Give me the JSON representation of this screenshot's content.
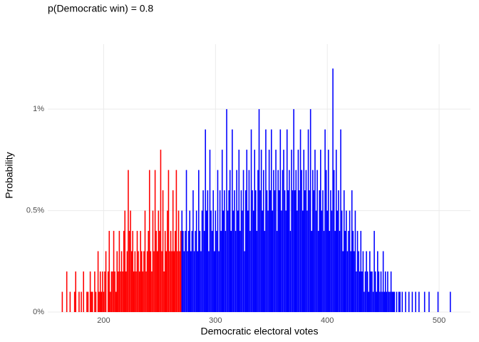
{
  "chart_data": {
    "type": "histogram",
    "title": "p(Democratic win) = 0.8",
    "x_label": "Democratic electoral votes",
    "y_label": "Probability",
    "xlim": [
      150,
      528
    ],
    "ylim": [
      0,
      1.32
    ],
    "xticks": [
      200,
      300,
      400,
      500
    ],
    "yticks": [
      {
        "value": 0,
        "label": "0%"
      },
      {
        "value": 0.5,
        "label": "0.5%"
      },
      {
        "value": 1,
        "label": "1%"
      }
    ],
    "grid": true,
    "series": [
      {
        "color": "#ff0000",
        "x": [
          163,
          164,
          165,
          166,
          167,
          168,
          169,
          170,
          171,
          172,
          173,
          174,
          175,
          176,
          177,
          178,
          179,
          180,
          181,
          182,
          183,
          184,
          185,
          186,
          187,
          188,
          189,
          190,
          191,
          192,
          193,
          194,
          195,
          196,
          197,
          198,
          199,
          200,
          201,
          202,
          203,
          204,
          205,
          206,
          207,
          208,
          209,
          210,
          211,
          212,
          213,
          214,
          215,
          216,
          217,
          218,
          219,
          220,
          221,
          222,
          223,
          224,
          225,
          226,
          227,
          228,
          229,
          230,
          231,
          232,
          233,
          234,
          235,
          236,
          237,
          238,
          239,
          240,
          241,
          242,
          243,
          244,
          245,
          246,
          247,
          248,
          249,
          250,
          251,
          252,
          253,
          254,
          255,
          256,
          257,
          258,
          259,
          260,
          261,
          262,
          263,
          264,
          265,
          266,
          267,
          268,
          269
        ],
        "values": [
          0.1,
          0,
          0,
          0,
          0.2,
          0,
          0,
          0.1,
          0,
          0,
          0,
          0.1,
          0.2,
          0,
          0,
          0.1,
          0,
          0.1,
          0,
          0.2,
          0,
          0,
          0.1,
          0.1,
          0,
          0.2,
          0.1,
          0.1,
          0,
          0.2,
          0.1,
          0,
          0.3,
          0.1,
          0.2,
          0.1,
          0.2,
          0.1,
          0.2,
          0.3,
          0,
          0.2,
          0.4,
          0.1,
          0.2,
          0.2,
          0.4,
          0.2,
          0.1,
          0.3,
          0.2,
          0.4,
          0.2,
          0.3,
          0.2,
          0.4,
          0.5,
          0.2,
          0.3,
          0.7,
          0.4,
          0.5,
          0.3,
          0.4,
          0.2,
          0.3,
          0.2,
          0.4,
          0.3,
          0.2,
          0.4,
          0.3,
          0.2,
          0.3,
          0.5,
          0.2,
          0.3,
          0.4,
          0.7,
          0.3,
          0.2,
          0.5,
          0.3,
          0.7,
          0.4,
          0.3,
          0.5,
          0.4,
          0.8,
          0.3,
          0.6,
          0.2,
          0.4,
          0.3,
          0.5,
          0.7,
          0.3,
          0.4,
          0.3,
          0.6,
          0.3,
          0.4,
          0.7,
          0.3,
          0.5,
          0.3,
          0.4
        ]
      },
      {
        "color": "#0000ff",
        "x": [
          270,
          271,
          272,
          273,
          274,
          275,
          276,
          277,
          278,
          279,
          280,
          281,
          282,
          283,
          284,
          285,
          286,
          287,
          288,
          289,
          290,
          291,
          292,
          293,
          294,
          295,
          296,
          297,
          298,
          299,
          300,
          301,
          302,
          303,
          304,
          305,
          306,
          307,
          308,
          309,
          310,
          311,
          312,
          313,
          314,
          315,
          316,
          317,
          318,
          319,
          320,
          321,
          322,
          323,
          324,
          325,
          326,
          327,
          328,
          329,
          330,
          331,
          332,
          333,
          334,
          335,
          336,
          337,
          338,
          339,
          340,
          341,
          342,
          343,
          344,
          345,
          346,
          347,
          348,
          349,
          350,
          351,
          352,
          353,
          354,
          355,
          356,
          357,
          358,
          359,
          360,
          361,
          362,
          363,
          364,
          365,
          366,
          367,
          368,
          369,
          370,
          371,
          372,
          373,
          374,
          375,
          376,
          377,
          378,
          379,
          380,
          381,
          382,
          383,
          384,
          385,
          386,
          387,
          388,
          389,
          390,
          391,
          392,
          393,
          394,
          395,
          396,
          397,
          398,
          399,
          400,
          401,
          402,
          403,
          404,
          405,
          406,
          407,
          408,
          409,
          410,
          411,
          412,
          413,
          414,
          415,
          416,
          417,
          418,
          419,
          420,
          421,
          422,
          423,
          424,
          425,
          426,
          427,
          428,
          429,
          430,
          431,
          432,
          433,
          434,
          435,
          436,
          437,
          438,
          439,
          440,
          441,
          442,
          443,
          444,
          445,
          446,
          447,
          448,
          449,
          450,
          451,
          452,
          453,
          454,
          455,
          456,
          457,
          458,
          459,
          460,
          461,
          462,
          463,
          464,
          465,
          466,
          467,
          468,
          469,
          470,
          471,
          472,
          473,
          474,
          475,
          476,
          477,
          478,
          479,
          480,
          481,
          482,
          483,
          484,
          485,
          486,
          487,
          488,
          489,
          490,
          491,
          492,
          493,
          494,
          495,
          496,
          497,
          498,
          499,
          500,
          501,
          502,
          503,
          504,
          505,
          506,
          507,
          508,
          509,
          510
        ],
        "values": [
          0.5,
          0.4,
          0.3,
          0.4,
          0.7,
          0.3,
          0.4,
          0.5,
          0.3,
          0.4,
          0.6,
          0.3,
          0.4,
          0.5,
          0.3,
          0.7,
          0.4,
          0.3,
          0.5,
          0.6,
          0.4,
          0.9,
          0.5,
          0.6,
          0.3,
          0.8,
          0.5,
          0.4,
          0.6,
          0.3,
          0.5,
          0.4,
          0.7,
          0.3,
          0.6,
          0.4,
          0.8,
          0.5,
          0.6,
          0.4,
          1.0,
          0.5,
          0.6,
          0.7,
          0.4,
          0.9,
          0.5,
          0.6,
          0.4,
          0.7,
          0.5,
          0.8,
          0.4,
          0.6,
          0.5,
          0.7,
          0.3,
          0.6,
          0.8,
          0.5,
          0.7,
          0.4,
          0.9,
          0.6,
          0.5,
          0.8,
          0.6,
          0.4,
          0.7,
          1.0,
          0.6,
          0.8,
          0.5,
          0.7,
          0.4,
          0.9,
          0.6,
          0.5,
          0.8,
          0.6,
          0.9,
          0.5,
          0.7,
          0.6,
          0.8,
          0.4,
          0.7,
          0.6,
          0.9,
          0.5,
          0.7,
          0.8,
          0.6,
          0.5,
          0.9,
          0.6,
          0.7,
          0.4,
          0.8,
          0.6,
          1.0,
          0.6,
          0.7,
          0.5,
          0.8,
          0.6,
          0.9,
          0.7,
          0.5,
          0.8,
          0.6,
          0.7,
          0.5,
          0.9,
          0.6,
          1.0,
          0.4,
          0.7,
          0.6,
          0.8,
          0.5,
          0.7,
          0.4,
          0.6,
          0.8,
          0.5,
          0.6,
          0.4,
          0.9,
          0.7,
          0.5,
          0.8,
          0.4,
          0.6,
          0.5,
          1.2,
          0.7,
          0.4,
          0.8,
          0.5,
          0.6,
          0.4,
          0.9,
          0.5,
          0.3,
          0.6,
          0.4,
          0.5,
          0.3,
          0.4,
          0.5,
          0.3,
          0.6,
          0.4,
          0.3,
          0.5,
          0.2,
          0.4,
          0.3,
          0.2,
          0.4,
          0.2,
          0.3,
          0.1,
          0.2,
          0.3,
          0.2,
          0.1,
          0.3,
          0.2,
          0.2,
          0.1,
          0.4,
          0.2,
          0.1,
          0.3,
          0.2,
          0.1,
          0.2,
          0.1,
          0.3,
          0.1,
          0.2,
          0.1,
          0.2,
          0.1,
          0.1,
          0.2,
          0.1,
          0.1,
          0.1,
          0,
          0.1,
          0,
          0.1,
          0.1,
          0,
          0.1,
          0,
          0,
          0.1,
          0,
          0,
          0.1,
          0,
          0,
          0.1,
          0,
          0,
          0.1,
          0,
          0,
          0.1,
          0,
          0,
          0,
          0,
          0.1,
          0,
          0,
          0,
          0.1,
          0,
          0,
          0,
          0,
          0,
          0,
          0,
          0.1,
          0,
          0,
          0,
          0,
          0,
          0,
          0,
          0,
          0,
          0,
          0.1
        ]
      }
    ]
  }
}
